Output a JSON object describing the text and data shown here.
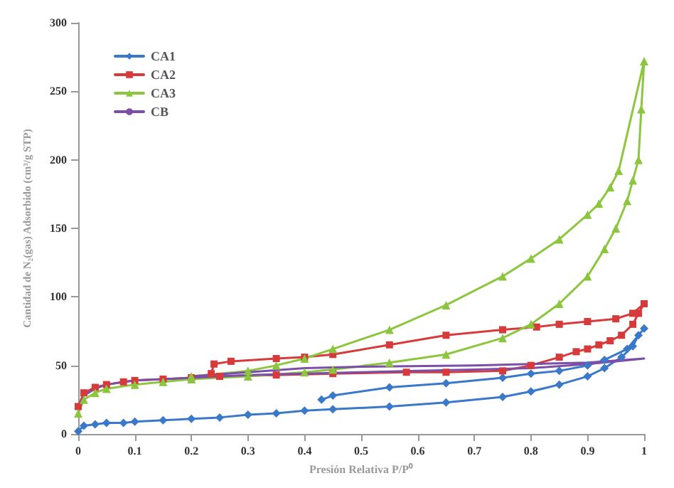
{
  "chart_data": {
    "type": "line",
    "xlabel": "Presión Relativa P/P⁰",
    "ylabel": "Cantidad de N₂(gas) Adsorbido (cm³/g STP)",
    "xlim": [
      0,
      1
    ],
    "xticks": [
      0,
      0.1,
      0.2,
      0.3,
      0.4,
      0.5,
      0.6,
      0.7,
      0.8,
      0.9,
      1
    ],
    "ylim": [
      0,
      300
    ],
    "yticks": [
      0,
      50,
      100,
      150,
      200,
      250,
      300
    ],
    "grid": false,
    "legend": "top left",
    "line_style": "solid",
    "series": [
      {
        "name": "CA1",
        "color": "#3a78c9",
        "marker": "diamond",
        "x": [
          0,
          0.01,
          0.03,
          0.05,
          0.08,
          0.1,
          0.15,
          0.2,
          0.25,
          0.3,
          0.35,
          0.4,
          0.45,
          0.55,
          0.65,
          0.75,
          0.8,
          0.85,
          0.9,
          0.93,
          0.96,
          0.98,
          0.99,
          1,
          0.97,
          0.93,
          0.9,
          0.85,
          0.8,
          0.75,
          0.65,
          0.55,
          0.45,
          0.43
        ],
        "values": [
          2,
          6,
          7,
          8,
          8,
          9,
          10,
          11,
          12,
          14,
          15,
          17,
          18,
          20,
          23,
          27,
          31,
          36,
          42,
          48,
          56,
          64,
          72,
          77,
          62,
          54,
          50,
          46,
          44,
          41,
          37,
          34,
          28,
          25
        ]
      },
      {
        "name": "CA2",
        "color": "#d63a3a",
        "marker": "square",
        "x": [
          0,
          0.01,
          0.03,
          0.05,
          0.08,
          0.1,
          0.15,
          0.2,
          0.25,
          0.35,
          0.45,
          0.58,
          0.65,
          0.75,
          0.8,
          0.85,
          0.88,
          0.9,
          0.92,
          0.94,
          0.96,
          0.98,
          0.99,
          1,
          0.98,
          0.95,
          0.9,
          0.85,
          0.81,
          0.75,
          0.65,
          0.55,
          0.45,
          0.4,
          0.35,
          0.27,
          0.24,
          0.235
        ],
        "values": [
          20,
          30,
          34,
          36,
          38,
          39,
          40,
          41,
          42,
          43,
          44,
          45,
          45,
          46,
          50,
          56,
          60,
          62,
          65,
          68,
          72,
          80,
          88,
          95,
          88,
          84,
          82,
          80,
          78,
          76,
          72,
          65,
          58,
          56,
          55,
          53,
          51,
          44
        ]
      },
      {
        "name": "CA3",
        "color": "#8cc63f",
        "marker": "triangle",
        "x": [
          0,
          0.01,
          0.03,
          0.05,
          0.1,
          0.15,
          0.2,
          0.3,
          0.4,
          0.45,
          0.55,
          0.65,
          0.75,
          0.8,
          0.85,
          0.9,
          0.93,
          0.95,
          0.97,
          0.98,
          0.99,
          0.995,
          1,
          0.955,
          0.94,
          0.92,
          0.9,
          0.85,
          0.8,
          0.75,
          0.65,
          0.55,
          0.45,
          0.4,
          0.35,
          0.3,
          0.2
        ],
        "values": [
          15,
          25,
          30,
          33,
          36,
          38,
          40,
          42,
          45,
          47,
          52,
          58,
          70,
          80,
          95,
          115,
          135,
          150,
          170,
          185,
          200,
          237,
          272,
          192,
          180,
          168,
          160,
          142,
          128,
          115,
          94,
          76,
          62,
          55,
          50,
          46,
          42
        ]
      },
      {
        "name": "CB",
        "color": "#7b4fa8",
        "marker": "none",
        "x": [
          0,
          0.01,
          0.03,
          0.05,
          0.1,
          0.2,
          0.3,
          0.4,
          0.5,
          0.6,
          0.7,
          0.8,
          0.9,
          0.95,
          1,
          0.9,
          0.7,
          0.5,
          0.4,
          0.3,
          0.2
        ],
        "values": [
          18,
          28,
          33,
          36,
          39,
          41,
          43,
          44,
          45,
          46,
          47,
          48,
          51,
          53,
          55,
          52,
          50,
          49,
          48,
          45,
          42
        ]
      }
    ]
  }
}
